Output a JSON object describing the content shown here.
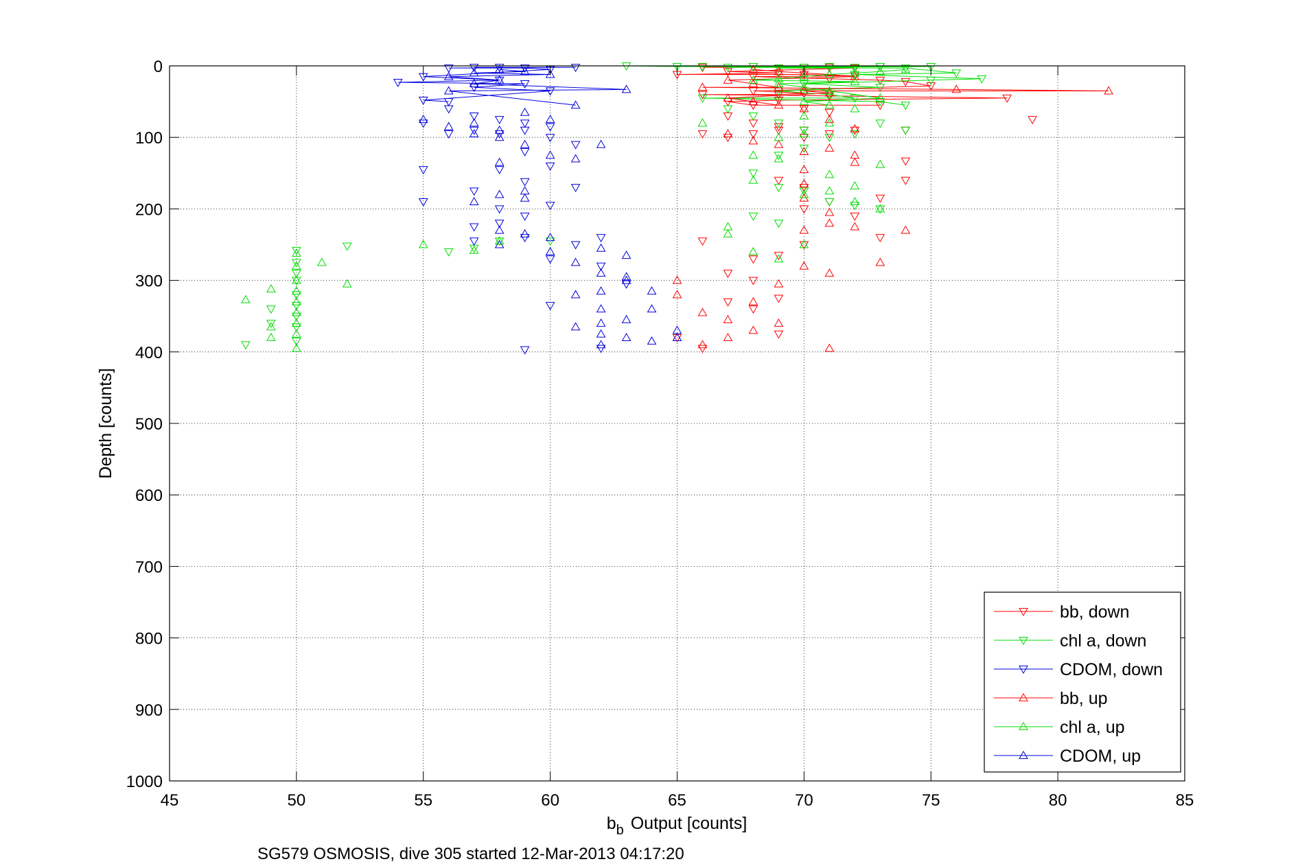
{
  "chart_data": {
    "type": "scatter",
    "title": "",
    "xlabel": "Output [counts]",
    "xlabel_prefix": "b",
    "xlabel_subscript": "b",
    "ylabel": "Depth [counts]",
    "xlim": [
      45,
      85
    ],
    "ylim": [
      0,
      1000
    ],
    "y_reversed": true,
    "grid": true,
    "xticks": [
      45,
      50,
      55,
      60,
      65,
      70,
      75,
      80,
      85
    ],
    "yticks": [
      0,
      100,
      200,
      300,
      400,
      500,
      600,
      700,
      800,
      900,
      1000
    ],
    "legend_position": "bottom-right",
    "caption": "SG579 OSMOSIS, dive 305 started 12-Mar-2013 04:17:20",
    "series": [
      {
        "name": "bb, down",
        "color": "#ff0000",
        "marker": "triangle-down",
        "points": [
          [
            66,
            2
          ],
          [
            68,
            1
          ],
          [
            69,
            3
          ],
          [
            70,
            2
          ],
          [
            71,
            2
          ],
          [
            72,
            3
          ],
          [
            73,
            1
          ],
          [
            65,
            12
          ],
          [
            67,
            8
          ],
          [
            68,
            15
          ],
          [
            69,
            10
          ],
          [
            70,
            12
          ],
          [
            71,
            18
          ],
          [
            72,
            14
          ],
          [
            73,
            20
          ],
          [
            74,
            22
          ],
          [
            75,
            28
          ],
          [
            78,
            45
          ],
          [
            79,
            75
          ],
          [
            68,
            35
          ],
          [
            69,
            40
          ],
          [
            70,
            38
          ],
          [
            71,
            42
          ],
          [
            67,
            50
          ],
          [
            68,
            55
          ],
          [
            69,
            48
          ],
          [
            70,
            60
          ],
          [
            71,
            65
          ],
          [
            66,
            40
          ],
          [
            67,
            70
          ],
          [
            68,
            80
          ],
          [
            69,
            85
          ],
          [
            70,
            90
          ],
          [
            66,
            95
          ],
          [
            67,
            100
          ],
          [
            68,
            95
          ],
          [
            69,
            90
          ],
          [
            70,
            100
          ],
          [
            71,
            95
          ],
          [
            72,
            90
          ],
          [
            73,
            55
          ],
          [
            74,
            90
          ],
          [
            69,
            160
          ],
          [
            70,
            170
          ],
          [
            70,
            200
          ],
          [
            71,
            190
          ],
          [
            72,
            210
          ],
          [
            70,
            250
          ],
          [
            69,
            265
          ],
          [
            68,
            270
          ],
          [
            67,
            290
          ],
          [
            66,
            245
          ],
          [
            68,
            300
          ],
          [
            69,
            325
          ],
          [
            67,
            330
          ],
          [
            68,
            340
          ],
          [
            69,
            375
          ],
          [
            66,
            395
          ],
          [
            65,
            380
          ],
          [
            73,
            240
          ],
          [
            74,
            160
          ],
          [
            74,
            133
          ],
          [
            73,
            185
          ]
        ]
      },
      {
        "name": "chl a, down",
        "color": "#00dd00",
        "marker": "triangle-down",
        "points": [
          [
            63,
            0
          ],
          [
            65,
            1
          ],
          [
            66,
            1
          ],
          [
            67,
            2
          ],
          [
            68,
            1
          ],
          [
            69,
            3
          ],
          [
            70,
            2
          ],
          [
            71,
            1
          ],
          [
            72,
            2
          ],
          [
            73,
            1
          ],
          [
            74,
            3
          ],
          [
            75,
            1
          ],
          [
            77,
            18
          ],
          [
            76,
            10
          ],
          [
            75,
            20
          ],
          [
            72,
            12
          ],
          [
            73,
            30
          ],
          [
            70,
            25
          ],
          [
            69,
            35
          ],
          [
            71,
            40
          ],
          [
            72,
            45
          ],
          [
            73,
            50
          ],
          [
            74,
            55
          ],
          [
            66,
            45
          ],
          [
            67,
            60
          ],
          [
            68,
            70
          ],
          [
            69,
            80
          ],
          [
            70,
            90
          ],
          [
            71,
            100
          ],
          [
            72,
            95
          ],
          [
            73,
            80
          ],
          [
            74,
            90
          ],
          [
            70,
            115
          ],
          [
            69,
            125
          ],
          [
            68,
            150
          ],
          [
            69,
            170
          ],
          [
            70,
            175
          ],
          [
            71,
            190
          ],
          [
            73,
            200
          ],
          [
            72,
            195
          ],
          [
            68,
            210
          ],
          [
            69,
            220
          ],
          [
            52,
            252
          ],
          [
            50,
            258
          ],
          [
            50,
            275
          ],
          [
            50,
            290
          ],
          [
            50,
            300
          ],
          [
            50,
            320
          ],
          [
            50,
            335
          ],
          [
            50,
            350
          ],
          [
            50,
            365
          ],
          [
            50,
            385
          ],
          [
            49,
            340
          ],
          [
            49,
            360
          ],
          [
            48,
            390
          ],
          [
            60,
            245
          ],
          [
            58,
            245
          ],
          [
            56,
            260
          ],
          [
            57,
            255
          ]
        ]
      },
      {
        "name": "CDOM, down",
        "color": "#0000dd",
        "marker": "triangle-down",
        "points": [
          [
            54,
            23
          ],
          [
            55,
            15
          ],
          [
            56,
            3
          ],
          [
            57,
            2
          ],
          [
            58,
            2
          ],
          [
            59,
            3
          ],
          [
            60,
            5
          ],
          [
            61,
            2
          ],
          [
            55,
            48
          ],
          [
            56,
            50
          ],
          [
            57,
            30
          ],
          [
            58,
            20
          ],
          [
            59,
            25
          ],
          [
            60,
            35
          ],
          [
            56,
            60
          ],
          [
            57,
            70
          ],
          [
            58,
            75
          ],
          [
            59,
            80
          ],
          [
            60,
            85
          ],
          [
            55,
            80
          ],
          [
            56,
            95
          ],
          [
            57,
            90
          ],
          [
            58,
            95
          ],
          [
            59,
            90
          ],
          [
            60,
            100
          ],
          [
            61,
            110
          ],
          [
            59,
            120
          ],
          [
            60,
            140
          ],
          [
            58,
            145
          ],
          [
            55,
            145
          ],
          [
            55,
            190
          ],
          [
            57,
            175
          ],
          [
            58,
            220
          ],
          [
            59,
            210
          ],
          [
            60,
            195
          ],
          [
            61,
            170
          ],
          [
            59,
            240
          ],
          [
            60,
            270
          ],
          [
            61,
            250
          ],
          [
            62,
            240
          ],
          [
            62,
            280
          ],
          [
            63,
            305
          ],
          [
            60,
            335
          ],
          [
            62,
            395
          ],
          [
            59,
            397
          ],
          [
            57,
            225
          ],
          [
            58,
            200
          ],
          [
            57,
            245
          ],
          [
            59,
            162
          ]
        ]
      },
      {
        "name": "bb, up",
        "color": "#ff0000",
        "marker": "triangle-up",
        "points": [
          [
            82,
            35
          ],
          [
            76,
            33
          ],
          [
            68,
            5
          ],
          [
            69,
            8
          ],
          [
            70,
            10
          ],
          [
            71,
            12
          ],
          [
            72,
            15
          ],
          [
            67,
            20
          ],
          [
            68,
            25
          ],
          [
            69,
            30
          ],
          [
            70,
            35
          ],
          [
            71,
            38
          ],
          [
            66,
            30
          ],
          [
            67,
            45
          ],
          [
            68,
            50
          ],
          [
            69,
            55
          ],
          [
            70,
            60
          ],
          [
            71,
            75
          ],
          [
            72,
            88
          ],
          [
            67,
            95
          ],
          [
            68,
            105
          ],
          [
            69,
            110
          ],
          [
            70,
            120
          ],
          [
            71,
            115
          ],
          [
            72,
            125
          ],
          [
            72,
            135
          ],
          [
            70,
            145
          ],
          [
            70,
            165
          ],
          [
            70,
            185
          ],
          [
            71,
            205
          ],
          [
            72,
            225
          ],
          [
            74,
            230
          ],
          [
            73,
            275
          ],
          [
            71,
            290
          ],
          [
            70,
            280
          ],
          [
            69,
            305
          ],
          [
            68,
            330
          ],
          [
            67,
            380
          ],
          [
            66,
            345
          ],
          [
            65,
            300
          ],
          [
            68,
            370
          ],
          [
            69,
            360
          ],
          [
            71,
            395
          ],
          [
            66,
            390
          ],
          [
            65,
            320
          ],
          [
            67,
            355
          ],
          [
            70,
            230
          ],
          [
            71,
            220
          ]
        ]
      },
      {
        "name": "chl a, up",
        "color": "#00dd00",
        "marker": "triangle-up",
        "points": [
          [
            74,
            5
          ],
          [
            73,
            8
          ],
          [
            72,
            10
          ],
          [
            71,
            12
          ],
          [
            70,
            15
          ],
          [
            69,
            18
          ],
          [
            68,
            20
          ],
          [
            69,
            25
          ],
          [
            70,
            30
          ],
          [
            71,
            35
          ],
          [
            72,
            22
          ],
          [
            73,
            45
          ],
          [
            70,
            50
          ],
          [
            71,
            55
          ],
          [
            72,
            60
          ],
          [
            70,
            70
          ],
          [
            71,
            80
          ],
          [
            70,
            95
          ],
          [
            69,
            100
          ],
          [
            66,
            80
          ],
          [
            68,
            125
          ],
          [
            69,
            130
          ],
          [
            68,
            160
          ],
          [
            70,
            180
          ],
          [
            71,
            175
          ],
          [
            72,
            190
          ],
          [
            73,
            200
          ],
          [
            73,
            138
          ],
          [
            71,
            152
          ],
          [
            72,
            168
          ],
          [
            67,
            225
          ],
          [
            67,
            235
          ],
          [
            68,
            260
          ],
          [
            69,
            270
          ],
          [
            70,
            250
          ],
          [
            50,
            262
          ],
          [
            51,
            275
          ],
          [
            52,
            305
          ],
          [
            50,
            280
          ],
          [
            50,
            300
          ],
          [
            50,
            315
          ],
          [
            50,
            330
          ],
          [
            50,
            345
          ],
          [
            50,
            360
          ],
          [
            50,
            375
          ],
          [
            50,
            395
          ],
          [
            49,
            312
          ],
          [
            49,
            380
          ],
          [
            48,
            327
          ],
          [
            49,
            365
          ],
          [
            55,
            250
          ],
          [
            57,
            258
          ],
          [
            58,
            245
          ]
        ]
      },
      {
        "name": "CDOM, up",
        "color": "#0000dd",
        "marker": "triangle-up",
        "points": [
          [
            63,
            33
          ],
          [
            58,
            5
          ],
          [
            57,
            10
          ],
          [
            56,
            15
          ],
          [
            59,
            8
          ],
          [
            60,
            12
          ],
          [
            58,
            20
          ],
          [
            57,
            25
          ],
          [
            56,
            35
          ],
          [
            55,
            75
          ],
          [
            57,
            80
          ],
          [
            58,
            90
          ],
          [
            59,
            65
          ],
          [
            60,
            75
          ],
          [
            61,
            55
          ],
          [
            56,
            85
          ],
          [
            57,
            95
          ],
          [
            58,
            100
          ],
          [
            59,
            110
          ],
          [
            60,
            125
          ],
          [
            58,
            135
          ],
          [
            61,
            130
          ],
          [
            62,
            110
          ],
          [
            57,
            190
          ],
          [
            58,
            180
          ],
          [
            59,
            175
          ],
          [
            60,
            240
          ],
          [
            61,
            275
          ],
          [
            62,
            290
          ],
          [
            63,
            295
          ],
          [
            62,
            315
          ],
          [
            63,
            300
          ],
          [
            64,
            315
          ],
          [
            61,
            320
          ],
          [
            62,
            340
          ],
          [
            62,
            360
          ],
          [
            63,
            355
          ],
          [
            64,
            340
          ],
          [
            62,
            375
          ],
          [
            63,
            380
          ],
          [
            62,
            390
          ],
          [
            61,
            365
          ],
          [
            63,
            265
          ],
          [
            62,
            255
          ],
          [
            64,
            385
          ],
          [
            65,
            370
          ],
          [
            65,
            380
          ],
          [
            58,
            230
          ],
          [
            59,
            235
          ],
          [
            60,
            260
          ],
          [
            59,
            185
          ],
          [
            58,
            250
          ]
        ]
      }
    ]
  }
}
